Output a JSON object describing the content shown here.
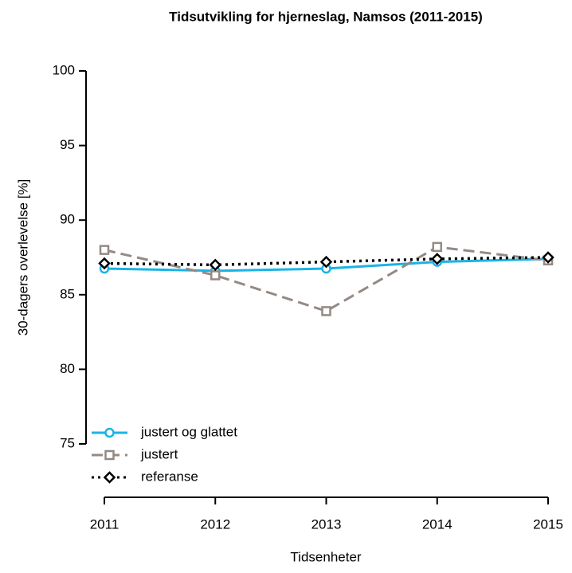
{
  "chart_data": {
    "type": "line",
    "title": "Tidsutvikling for hjerneslag, Namsos (2011-2015)",
    "x_label": "Tidsenheter",
    "y_label": "30-dagers overlevelse [%]",
    "x": [
      2011,
      2012,
      2013,
      2014,
      2015
    ],
    "xlim": [
      2011,
      2015
    ],
    "xticks": [
      2011,
      2012,
      2013,
      2014,
      2015
    ],
    "ylim": [
      75,
      100
    ],
    "yticks": [
      75,
      80,
      85,
      90,
      95,
      100
    ],
    "legend": "bottom-left",
    "series": [
      {
        "name": "justert og glattet",
        "color": "#1ab3e6",
        "dash": "solid",
        "marker": "circle",
        "values": [
          86.75,
          86.6,
          86.75,
          87.2,
          87.4
        ]
      },
      {
        "name": "justert",
        "color": "#948a85",
        "dash": "dashed",
        "marker": "square",
        "values": [
          88.0,
          86.3,
          83.9,
          88.2,
          87.3
        ]
      },
      {
        "name": "referanse",
        "color": "#000000",
        "dash": "dotted",
        "marker": "diamond",
        "values": [
          87.1,
          87.0,
          87.2,
          87.4,
          87.5
        ]
      }
    ]
  }
}
